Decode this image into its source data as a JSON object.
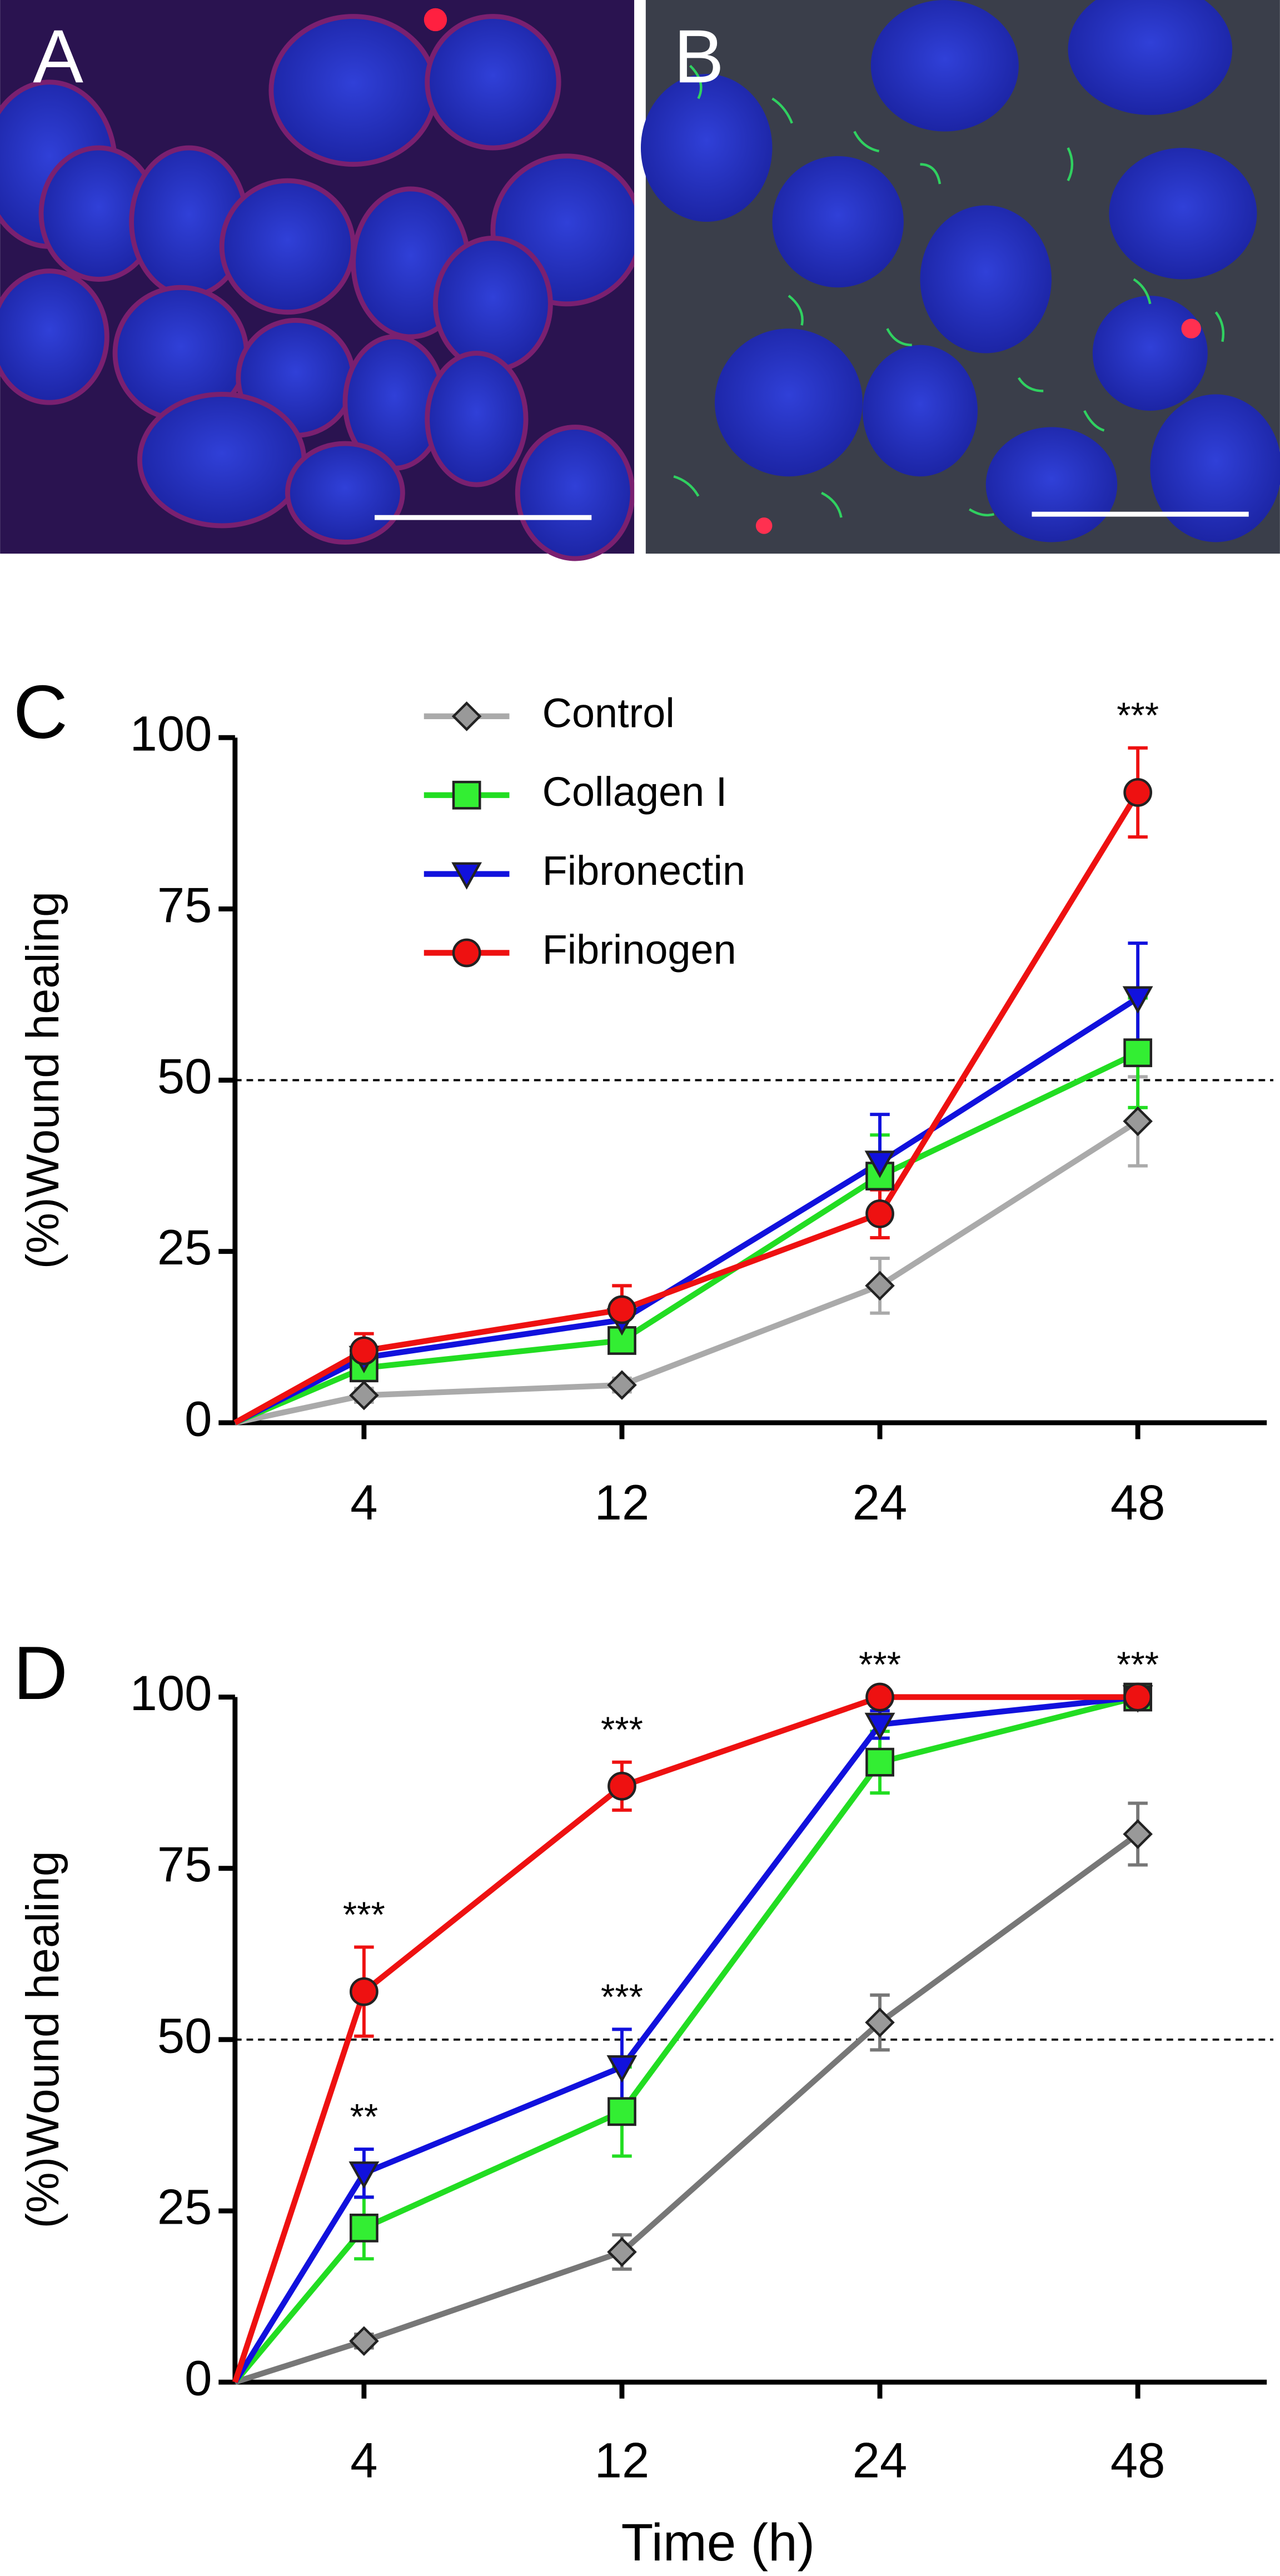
{
  "images": [
    {
      "label": "A"
    },
    {
      "label": "B"
    }
  ],
  "chart_data": [
    {
      "type": "line",
      "panel": "C",
      "ylabel": "(%)Wound healing",
      "categories": [
        null,
        "4",
        "12",
        "24",
        "48"
      ],
      "ylim": [
        0,
        100
      ],
      "yticks": [
        0,
        25,
        50,
        75,
        100
      ],
      "reference_line": 50,
      "grid": false,
      "legend": "upper left",
      "series": [
        {
          "name": "Control",
          "color": "#aaaaaa",
          "marker": "diamond",
          "marker_color": "#999999",
          "values": [
            0,
            4,
            5.5,
            20,
            44
          ],
          "errors": [
            null,
            1,
            1,
            4,
            6.5
          ],
          "annotations": [
            null,
            null,
            null,
            null,
            null
          ]
        },
        {
          "name": "Collagen I",
          "color": "#22dd22",
          "marker": "square",
          "marker_color": "#33ee33",
          "values": [
            0,
            8,
            12,
            36,
            54
          ],
          "errors": [
            null,
            1.5,
            1.5,
            6,
            8
          ],
          "annotations": [
            null,
            null,
            null,
            null,
            null
          ]
        },
        {
          "name": "Fibronectin",
          "color": "#1111dd",
          "marker": "triangle-down",
          "marker_color": "#1111dd",
          "values": [
            0,
            9.5,
            15,
            38,
            62
          ],
          "errors": [
            null,
            2,
            2,
            7,
            8
          ],
          "annotations": [
            null,
            null,
            null,
            null,
            null
          ]
        },
        {
          "name": "Fibrinogen",
          "color": "#ee1111",
          "marker": "circle",
          "marker_color": "#ee1111",
          "values": [
            0,
            10.5,
            16.5,
            30.5,
            92
          ],
          "errors": [
            null,
            2.5,
            3.5,
            3.5,
            6.5
          ],
          "annotations": [
            null,
            null,
            null,
            null,
            "***"
          ]
        }
      ]
    },
    {
      "type": "line",
      "panel": "D",
      "ylabel": "(%)Wound healing",
      "xlabel": "Time (h)",
      "categories": [
        null,
        "4",
        "12",
        "24",
        "48"
      ],
      "ylim": [
        0,
        100
      ],
      "yticks": [
        0,
        25,
        50,
        75,
        100
      ],
      "reference_line": 50,
      "grid": false,
      "series": [
        {
          "name": "Control",
          "color": "#777777",
          "marker": "diamond",
          "marker_color": "#999999",
          "values": [
            0,
            6,
            19,
            52.5,
            80
          ],
          "errors": [
            null,
            1,
            2.5,
            4,
            4.5
          ],
          "annotations": [
            null,
            null,
            null,
            null,
            null
          ]
        },
        {
          "name": "Collagen I",
          "color": "#22dd22",
          "marker": "square",
          "marker_color": "#33ee33",
          "values": [
            0,
            22.5,
            39.5,
            90.5,
            100
          ],
          "errors": [
            null,
            4.5,
            6.5,
            4.5,
            0
          ],
          "annotations": [
            null,
            null,
            null,
            null,
            null
          ]
        },
        {
          "name": "Fibronectin",
          "color": "#1111dd",
          "marker": "triangle-down",
          "marker_color": "#1111dd",
          "values": [
            0,
            30.5,
            46,
            96,
            100
          ],
          "errors": [
            null,
            3.5,
            5.5,
            2,
            0
          ],
          "annotations": [
            null,
            "**",
            "***",
            null,
            null
          ]
        },
        {
          "name": "Fibrinogen",
          "color": "#ee1111",
          "marker": "circle",
          "marker_color": "#ee1111",
          "values": [
            0,
            57,
            87,
            100,
            100
          ],
          "errors": [
            null,
            6.5,
            3.5,
            0,
            0
          ],
          "annotations": [
            null,
            "***",
            "***",
            "***",
            "***"
          ]
        }
      ]
    }
  ]
}
